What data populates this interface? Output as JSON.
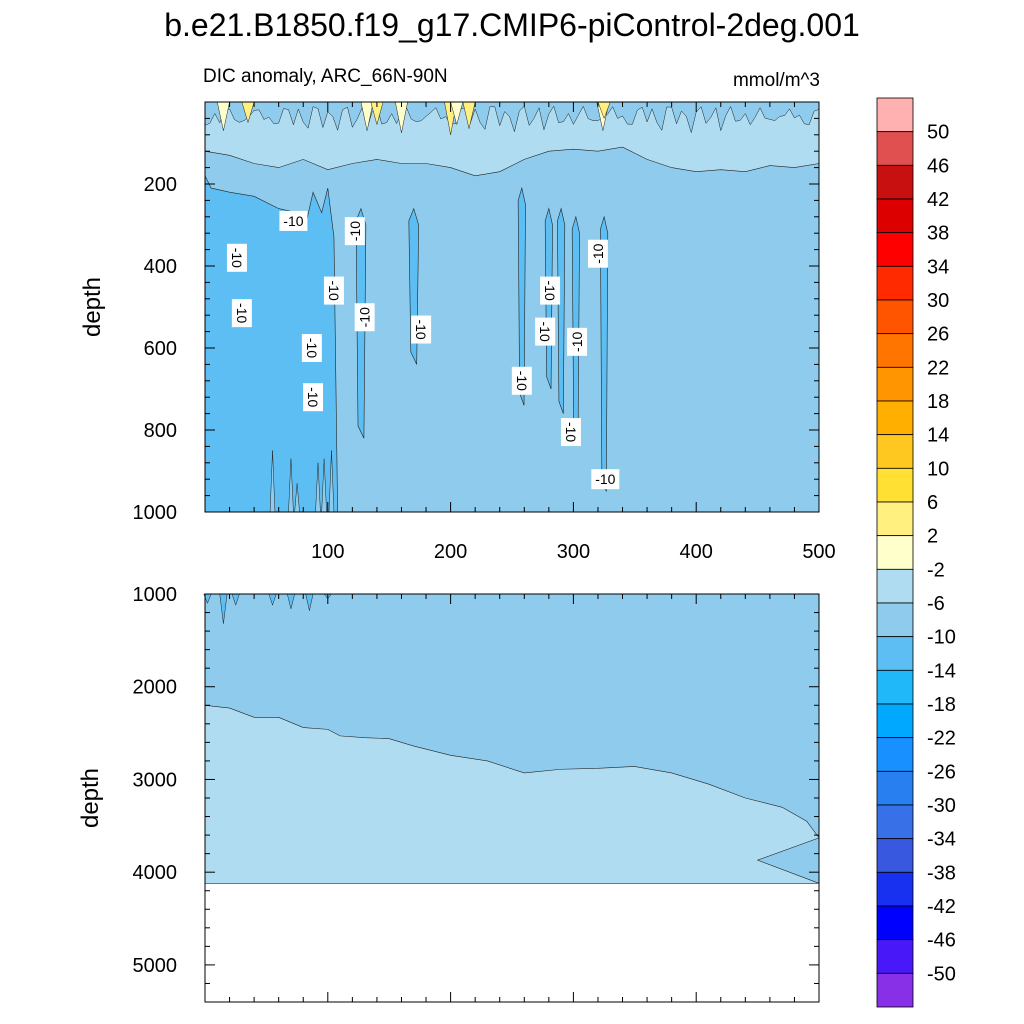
{
  "chart_data": [
    {
      "type": "contour",
      "title": "b.e21.B1850.f19_g17.CMIP6-piControl-2deg.001",
      "subtitle_left": "DIC anomaly, ARC_66N-90N",
      "subtitle_right": "mmol/m^3",
      "xlabel": "",
      "ylabel": "depth",
      "xlim": [
        0,
        500
      ],
      "ylim": [
        1000,
        0
      ],
      "x_ticks": [
        100,
        200,
        300,
        400,
        500
      ],
      "y_ticks": [
        200,
        400,
        600,
        800,
        1000
      ],
      "contour_labels": [
        {
          "text": "-10",
          "x": 72,
          "y": 290,
          "rotation": 0
        },
        {
          "text": "-10",
          "x": 26,
          "y": 380,
          "rotation": 90
        },
        {
          "text": "-10",
          "x": 30,
          "y": 515,
          "rotation": 90
        },
        {
          "text": "-10",
          "x": 122,
          "y": 315,
          "rotation": -90
        },
        {
          "text": "-10",
          "x": 105,
          "y": 460,
          "rotation": 90
        },
        {
          "text": "-10",
          "x": 130,
          "y": 525,
          "rotation": -90
        },
        {
          "text": "-10",
          "x": 87,
          "y": 600,
          "rotation": 90
        },
        {
          "text": "-10",
          "x": 88,
          "y": 720,
          "rotation": 90
        },
        {
          "text": "-10",
          "x": 176,
          "y": 555,
          "rotation": 90
        },
        {
          "text": "-10",
          "x": 258,
          "y": 680,
          "rotation": 90
        },
        {
          "text": "-10",
          "x": 281,
          "y": 460,
          "rotation": 90
        },
        {
          "text": "-10",
          "x": 277,
          "y": 560,
          "rotation": 90
        },
        {
          "text": "-10",
          "x": 303,
          "y": 585,
          "rotation": -90
        },
        {
          "text": "-10",
          "x": 320,
          "y": 370,
          "rotation": -90
        },
        {
          "text": "-10",
          "x": 298,
          "y": 805,
          "rotation": 90
        },
        {
          "text": "-10",
          "x": 326,
          "y": 920,
          "rotation": 0
        }
      ]
    },
    {
      "type": "contour",
      "xlabel": "",
      "ylabel": "depth",
      "xlim": [
        0,
        500
      ],
      "ylim": [
        5400,
        1000
      ],
      "x_ticks": [
        100,
        200,
        300,
        400,
        500
      ],
      "y_ticks": [
        1000,
        2000,
        3000,
        4000,
        5000
      ],
      "seafloor_depth": 4120,
      "boundary_-6_contour": [
        [
          0,
          2200
        ],
        [
          20,
          2230
        ],
        [
          40,
          2330
        ],
        [
          60,
          2330
        ],
        [
          80,
          2440
        ],
        [
          100,
          2460
        ],
        [
          110,
          2530
        ],
        [
          130,
          2550
        ],
        [
          150,
          2560
        ],
        [
          170,
          2640
        ],
        [
          200,
          2740
        ],
        [
          230,
          2800
        ],
        [
          260,
          2930
        ],
        [
          290,
          2890
        ],
        [
          320,
          2880
        ],
        [
          350,
          2860
        ],
        [
          380,
          2930
        ],
        [
          410,
          3050
        ],
        [
          440,
          3200
        ],
        [
          470,
          3300
        ],
        [
          490,
          3450
        ],
        [
          500,
          3630
        ]
      ]
    }
  ],
  "colorbar": {
    "levels": [
      "50",
      "46",
      "42",
      "38",
      "34",
      "30",
      "26",
      "22",
      "18",
      "14",
      "10",
      "6",
      "2",
      "-2",
      "-6",
      "-10",
      "-14",
      "-18",
      "-22",
      "-26",
      "-30",
      "-34",
      "-38",
      "-42",
      "-46",
      "-50"
    ],
    "colors": [
      "#ffb0b0",
      "#e05050",
      "#c81010",
      "#dc0000",
      "#ff0000",
      "#ff2a00",
      "#ff5500",
      "#ff7500",
      "#ff9500",
      "#ffaf00",
      "#ffc820",
      "#ffe033",
      "#fff080",
      "#ffffcc",
      "#b0dcf2",
      "#8ecbec",
      "#5cbef2",
      "#20b8f8",
      "#00a8ff",
      "#1890ff",
      "#2880f0",
      "#3870e8",
      "#3858e0",
      "#1830f0",
      "#0000ff",
      "#4818f8",
      "#8830e8"
    ]
  }
}
